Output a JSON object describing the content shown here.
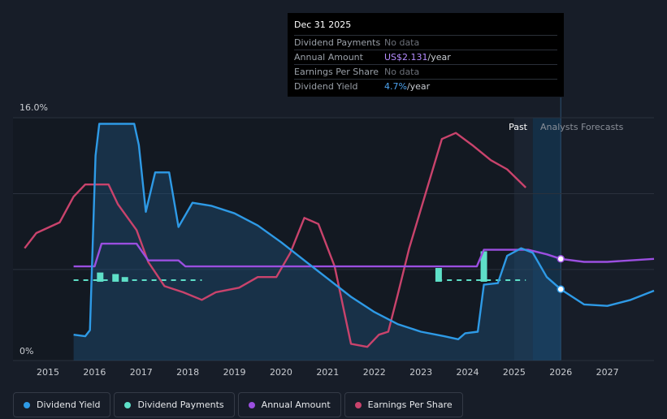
{
  "tooltip": {
    "date": "Dec 31 2025",
    "rows": [
      {
        "label": "Dividend Payments",
        "value": "No data",
        "unit": ""
      },
      {
        "label": "Annual Amount",
        "value": "US$2.131",
        "unit": "/year"
      },
      {
        "label": "Earnings Per Share",
        "value": "No data",
        "unit": ""
      },
      {
        "label": "Dividend Yield",
        "value": "4.7%",
        "unit": "/year"
      }
    ]
  },
  "regions": {
    "past": "Past",
    "forecast": "Analysts Forecasts"
  },
  "legend": [
    {
      "label": "Dividend Yield",
      "color": "#2e9ae6"
    },
    {
      "label": "Dividend Payments",
      "color": "#5ee0c8"
    },
    {
      "label": "Annual Amount",
      "color": "#9b4fe0"
    },
    {
      "label": "Earnings Per Share",
      "color": "#c9436c"
    }
  ],
  "chart_data": {
    "type": "line",
    "ytick_labels": [
      "16.0%",
      "0%"
    ],
    "ylim": [
      0,
      16
    ],
    "xlim": [
      2014.25,
      2028.0
    ],
    "x_ticks": [
      2015,
      2016,
      2017,
      2018,
      2019,
      2020,
      2021,
      2022,
      2023,
      2024,
      2025,
      2026,
      2027
    ],
    "past_forecast_boundary": 2026.0,
    "grid": true,
    "series": [
      {
        "name": "Dividend Yield",
        "color": "#2e9ae6",
        "unit": "%",
        "points": [
          [
            2015.55,
            1.7
          ],
          [
            2015.8,
            1.6
          ],
          [
            2015.9,
            2.0
          ],
          [
            2016.02,
            13.5
          ],
          [
            2016.1,
            15.6
          ],
          [
            2016.3,
            15.6
          ],
          [
            2016.6,
            15.6
          ],
          [
            2016.85,
            15.6
          ],
          [
            2016.95,
            14.2
          ],
          [
            2017.1,
            9.8
          ],
          [
            2017.3,
            12.4
          ],
          [
            2017.6,
            12.4
          ],
          [
            2017.8,
            8.8
          ],
          [
            2018.1,
            10.4
          ],
          [
            2018.5,
            10.2
          ],
          [
            2019.0,
            9.7
          ],
          [
            2019.5,
            8.9
          ],
          [
            2020.0,
            7.8
          ],
          [
            2020.5,
            6.6
          ],
          [
            2021.0,
            5.4
          ],
          [
            2021.5,
            4.2
          ],
          [
            2022.0,
            3.2
          ],
          [
            2022.5,
            2.4
          ],
          [
            2023.0,
            1.9
          ],
          [
            2023.5,
            1.6
          ],
          [
            2023.8,
            1.4
          ],
          [
            2023.95,
            1.8
          ],
          [
            2024.22,
            1.9
          ],
          [
            2024.35,
            5.0
          ],
          [
            2024.65,
            5.1
          ],
          [
            2024.85,
            6.9
          ],
          [
            2025.15,
            7.4
          ],
          [
            2025.4,
            7.1
          ],
          [
            2025.7,
            5.5
          ],
          [
            2026.0,
            4.7
          ],
          [
            2026.5,
            3.7
          ],
          [
            2027.0,
            3.6
          ],
          [
            2027.5,
            4.0
          ],
          [
            2028.0,
            4.6
          ]
        ]
      },
      {
        "name": "Dividend Payments",
        "color": "#5ee0c8",
        "unit": "%",
        "points": [
          [
            2015.55,
            5.3
          ],
          [
            2018.3,
            5.3
          ],
          [
            2023.35,
            5.3
          ],
          [
            2025.25,
            5.3
          ]
        ],
        "bars": [
          {
            "x": 2016.12,
            "value": 5.8
          },
          {
            "x": 2016.45,
            "value": 5.7
          },
          {
            "x": 2016.65,
            "value": 5.5
          },
          {
            "x": 2023.38,
            "value": 6.1
          },
          {
            "x": 2024.35,
            "value": 7.2
          }
        ]
      },
      {
        "name": "Annual Amount",
        "color": "#9b4fe0",
        "unit": "%",
        "points": [
          [
            2015.55,
            6.2
          ],
          [
            2016.0,
            6.2
          ],
          [
            2016.15,
            7.7
          ],
          [
            2016.9,
            7.7
          ],
          [
            2017.15,
            6.6
          ],
          [
            2017.8,
            6.6
          ],
          [
            2017.95,
            6.2
          ],
          [
            2024.2,
            6.2
          ],
          [
            2024.35,
            7.3
          ],
          [
            2025.3,
            7.3
          ],
          [
            2025.7,
            7.0
          ],
          [
            2026.0,
            6.7
          ],
          [
            2026.5,
            6.5
          ],
          [
            2027.0,
            6.5
          ],
          [
            2028.0,
            6.7
          ]
        ]
      },
      {
        "name": "Earnings Per Share",
        "color": "#c9436c",
        "unit": "%",
        "points": [
          [
            2014.5,
            7.4
          ],
          [
            2014.75,
            8.4
          ],
          [
            2015.25,
            9.1
          ],
          [
            2015.55,
            10.8
          ],
          [
            2015.8,
            11.6
          ],
          [
            2016.3,
            11.6
          ],
          [
            2016.5,
            10.3
          ],
          [
            2016.9,
            8.6
          ],
          [
            2017.15,
            6.5
          ],
          [
            2017.5,
            4.9
          ],
          [
            2017.9,
            4.5
          ],
          [
            2018.3,
            4.0
          ],
          [
            2018.6,
            4.5
          ],
          [
            2019.1,
            4.8
          ],
          [
            2019.5,
            5.5
          ],
          [
            2019.9,
            5.5
          ],
          [
            2020.2,
            7.1
          ],
          [
            2020.5,
            9.4
          ],
          [
            2020.8,
            9.0
          ],
          [
            2021.15,
            6.2
          ],
          [
            2021.5,
            1.1
          ],
          [
            2021.85,
            0.9
          ],
          [
            2022.1,
            1.7
          ],
          [
            2022.3,
            1.9
          ],
          [
            2022.5,
            4.3
          ],
          [
            2022.75,
            7.4
          ],
          [
            2023.1,
            11.0
          ],
          [
            2023.45,
            14.6
          ],
          [
            2023.75,
            15.0
          ],
          [
            2024.1,
            14.2
          ],
          [
            2024.5,
            13.2
          ],
          [
            2024.85,
            12.6
          ],
          [
            2025.25,
            11.4
          ]
        ]
      }
    ]
  }
}
